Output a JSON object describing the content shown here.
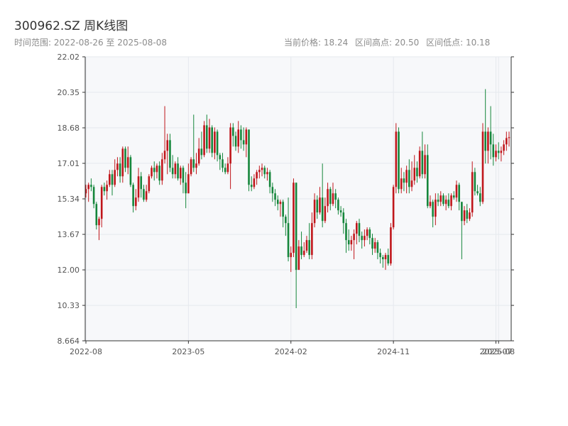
{
  "header": {
    "title": "300962.SZ 周K线图",
    "range_label": "时间范围: 2022-08-26 至 2025-08-08",
    "current_price_label": "当前价格: 18.24",
    "range_high_label": "区间高点: 20.50",
    "range_low_label": "区间低点: 10.18"
  },
  "colors": {
    "up": "#c0161b",
    "down": "#15863b",
    "grid": "#e6e9ee",
    "plot_bg": "#f7f8fa",
    "axis": "#333333"
  },
  "chart_data": {
    "type": "candlestick",
    "title": "300962.SZ 周K线图",
    "xlabel": "",
    "ylabel": "",
    "ylim": [
      8.664,
      22.02
    ],
    "y_ticks": [
      "22.02",
      "20.35",
      "18.68",
      "17.01",
      "15.34",
      "13.67",
      "12.00",
      "10.33",
      "8.664"
    ],
    "y_tick_values": [
      22.02,
      20.35,
      18.68,
      17.01,
      15.34,
      13.67,
      12.0,
      10.33,
      8.664
    ],
    "x_ticks": [
      "2022-08",
      "2023-05",
      "2024-02",
      "2024-11",
      "2025-07",
      "2025-08"
    ],
    "x_tick_indices": [
      0,
      39,
      78,
      117,
      156,
      157
    ],
    "start_date": "2022-08-26",
    "end_date": "2025-08-08",
    "grid": true,
    "candles": [
      [
        15.6,
        15.8,
        15.4,
        16.0
      ],
      [
        15.8,
        16.0,
        15.2,
        16.1
      ],
      [
        16.0,
        15.9,
        15.7,
        16.3
      ],
      [
        15.9,
        15.1,
        14.9,
        16.0
      ],
      [
        15.1,
        14.1,
        13.9,
        15.2
      ],
      [
        14.1,
        14.4,
        13.4,
        14.5
      ],
      [
        14.4,
        15.9,
        14.0,
        16.0
      ],
      [
        15.9,
        15.7,
        15.5,
        16.1
      ],
      [
        15.7,
        16.0,
        15.3,
        16.2
      ],
      [
        16.0,
        16.5,
        15.9,
        16.7
      ],
      [
        16.5,
        16.0,
        15.5,
        16.7
      ],
      [
        16.0,
        16.7,
        15.9,
        17.2
      ],
      [
        16.7,
        17.0,
        16.4,
        17.3
      ],
      [
        17.0,
        16.4,
        16.1,
        17.3
      ],
      [
        16.4,
        17.7,
        16.1,
        17.8
      ],
      [
        17.7,
        16.8,
        16.6,
        17.8
      ],
      [
        16.8,
        17.3,
        16.5,
        17.8
      ],
      [
        17.3,
        16.0,
        15.9,
        17.4
      ],
      [
        16.0,
        15.0,
        14.7,
        16.1
      ],
      [
        15.0,
        15.4,
        14.8,
        15.8
      ],
      [
        15.4,
        16.4,
        15.2,
        16.8
      ],
      [
        16.4,
        15.8,
        15.4,
        16.6
      ],
      [
        15.8,
        15.3,
        15.2,
        16.0
      ],
      [
        15.3,
        15.7,
        15.2,
        16.0
      ],
      [
        15.7,
        16.4,
        15.6,
        16.5
      ],
      [
        16.4,
        16.8,
        16.3,
        16.9
      ],
      [
        16.8,
        16.6,
        16.2,
        17.1
      ],
      [
        16.6,
        16.9,
        16.3,
        17.0
      ],
      [
        16.9,
        16.2,
        16.0,
        17.1
      ],
      [
        16.2,
        17.2,
        16.0,
        17.5
      ],
      [
        17.2,
        17.6,
        17.0,
        19.7
      ],
      [
        17.6,
        18.1,
        16.5,
        18.4
      ],
      [
        18.1,
        16.8,
        16.6,
        18.4
      ],
      [
        16.8,
        16.5,
        16.3,
        17.4
      ],
      [
        16.5,
        17.0,
        16.3,
        17.1
      ],
      [
        17.0,
        16.3,
        16.2,
        17.3
      ],
      [
        16.3,
        16.8,
        16.0,
        16.9
      ],
      [
        16.8,
        16.1,
        15.6,
        16.9
      ],
      [
        16.1,
        15.6,
        14.9,
        16.6
      ],
      [
        15.6,
        16.5,
        15.6,
        17.0
      ],
      [
        16.5,
        17.2,
        16.4,
        17.3
      ],
      [
        17.2,
        16.8,
        16.6,
        19.3
      ],
      [
        16.8,
        17.0,
        16.5,
        17.5
      ],
      [
        17.0,
        17.7,
        16.9,
        18.2
      ],
      [
        17.7,
        17.4,
        17.2,
        18.5
      ],
      [
        17.4,
        18.8,
        17.3,
        19.0
      ],
      [
        18.8,
        17.7,
        17.5,
        19.3
      ],
      [
        17.7,
        18.7,
        17.5,
        19.1
      ],
      [
        18.7,
        17.5,
        17.3,
        18.8
      ],
      [
        17.5,
        18.5,
        17.2,
        18.7
      ],
      [
        18.5,
        17.4,
        17.1,
        18.6
      ],
      [
        17.4,
        17.2,
        16.7,
        17.5
      ],
      [
        17.2,
        16.8,
        16.6,
        17.5
      ],
      [
        16.8,
        16.6,
        16.5,
        17.0
      ],
      [
        16.6,
        17.0,
        16.5,
        17.3
      ],
      [
        17.0,
        18.7,
        15.8,
        18.9
      ],
      [
        18.7,
        18.3,
        17.8,
        18.9
      ],
      [
        18.3,
        17.8,
        17.6,
        18.5
      ],
      [
        17.8,
        18.6,
        17.5,
        19.0
      ],
      [
        18.6,
        18.1,
        17.7,
        18.8
      ],
      [
        18.1,
        17.9,
        17.6,
        18.7
      ],
      [
        17.9,
        18.6,
        17.3,
        18.7
      ],
      [
        18.6,
        16.0,
        15.7,
        18.6
      ],
      [
        16.0,
        15.9,
        15.7,
        16.4
      ],
      [
        15.9,
        16.3,
        15.8,
        16.5
      ],
      [
        16.3,
        16.6,
        16.0,
        16.7
      ],
      [
        16.6,
        16.7,
        16.3,
        16.9
      ],
      [
        16.7,
        16.8,
        16.4,
        17.0
      ],
      [
        16.8,
        16.5,
        16.3,
        16.9
      ],
      [
        16.5,
        16.6,
        16.2,
        16.8
      ],
      [
        16.6,
        15.9,
        15.6,
        16.7
      ],
      [
        15.9,
        15.6,
        15.2,
        16.1
      ],
      [
        15.6,
        15.3,
        15.0,
        15.8
      ],
      [
        15.3,
        15.1,
        14.8,
        15.5
      ],
      [
        15.1,
        15.2,
        14.5,
        15.3
      ],
      [
        15.2,
        14.5,
        14.0,
        15.3
      ],
      [
        14.5,
        14.2,
        13.6,
        14.6
      ],
      [
        14.2,
        12.6,
        12.4,
        15.4
      ],
      [
        12.6,
        12.8,
        11.9,
        13.1
      ],
      [
        12.8,
        16.1,
        12.6,
        16.3
      ],
      [
        16.1,
        12.0,
        10.2,
        16.1
      ],
      [
        12.0,
        13.1,
        12.0,
        13.4
      ],
      [
        13.1,
        12.7,
        12.5,
        13.8
      ],
      [
        12.7,
        12.9,
        12.6,
        13.3
      ],
      [
        12.9,
        13.4,
        12.8,
        13.6
      ],
      [
        13.4,
        12.7,
        12.5,
        14.2
      ],
      [
        12.7,
        14.2,
        12.5,
        14.7
      ],
      [
        14.2,
        15.3,
        14.0,
        15.6
      ],
      [
        15.3,
        14.7,
        14.4,
        15.5
      ],
      [
        14.7,
        15.4,
        14.6,
        15.9
      ],
      [
        15.4,
        14.3,
        14.0,
        17.0
      ],
      [
        14.3,
        15.0,
        14.2,
        15.4
      ],
      [
        15.0,
        15.8,
        14.7,
        16.1
      ],
      [
        15.8,
        15.1,
        14.8,
        15.9
      ],
      [
        15.1,
        15.6,
        15.0,
        16.1
      ],
      [
        15.6,
        15.3,
        14.9,
        15.8
      ],
      [
        15.3,
        14.8,
        14.6,
        15.4
      ],
      [
        14.8,
        14.7,
        14.5,
        15.0
      ],
      [
        14.7,
        14.2,
        13.7,
        14.9
      ],
      [
        14.2,
        13.4,
        12.8,
        14.4
      ],
      [
        13.4,
        13.2,
        12.9,
        13.9
      ],
      [
        13.2,
        13.4,
        12.9,
        13.6
      ],
      [
        13.4,
        13.7,
        12.5,
        13.9
      ],
      [
        13.7,
        14.2,
        13.2,
        14.3
      ],
      [
        14.2,
        13.6,
        13.3,
        14.4
      ],
      [
        13.6,
        13.4,
        13.0,
        13.8
      ],
      [
        13.4,
        13.6,
        13.1,
        13.9
      ],
      [
        13.6,
        13.9,
        13.4,
        14.0
      ],
      [
        13.9,
        13.5,
        13.2,
        14.0
      ],
      [
        13.5,
        13.0,
        12.7,
        13.7
      ],
      [
        13.0,
        13.3,
        12.8,
        13.5
      ],
      [
        13.3,
        12.8,
        12.5,
        13.4
      ],
      [
        12.8,
        12.6,
        12.3,
        13.0
      ],
      [
        12.6,
        12.5,
        12.1,
        12.7
      ],
      [
        12.5,
        12.7,
        12.0,
        12.8
      ],
      [
        12.7,
        12.3,
        12.2,
        13.0
      ],
      [
        12.3,
        14.0,
        12.2,
        14.2
      ],
      [
        14.0,
        15.9,
        13.9,
        16.0
      ],
      [
        15.9,
        18.5,
        15.6,
        18.9
      ],
      [
        18.5,
        15.8,
        15.6,
        18.7
      ],
      [
        15.8,
        16.3,
        15.6,
        16.8
      ],
      [
        16.3,
        16.1,
        15.7,
        16.6
      ],
      [
        16.1,
        16.7,
        15.6,
        16.9
      ],
      [
        16.7,
        15.9,
        15.6,
        17.2
      ],
      [
        15.9,
        16.2,
        15.7,
        17.1
      ],
      [
        16.2,
        16.8,
        16.0,
        17.4
      ],
      [
        16.8,
        16.4,
        16.1,
        17.1
      ],
      [
        16.4,
        17.6,
        16.3,
        17.8
      ],
      [
        17.6,
        16.5,
        16.3,
        18.5
      ],
      [
        16.5,
        17.4,
        16.3,
        17.9
      ],
      [
        17.4,
        15.0,
        14.9,
        17.9
      ],
      [
        15.0,
        15.2,
        14.9,
        15.5
      ],
      [
        15.2,
        14.5,
        14.0,
        15.3
      ],
      [
        14.5,
        15.3,
        14.1,
        15.6
      ],
      [
        15.3,
        15.2,
        15.0,
        15.6
      ],
      [
        15.2,
        15.5,
        15.0,
        15.7
      ],
      [
        15.5,
        15.1,
        15.0,
        15.6
      ],
      [
        15.1,
        15.3,
        14.8,
        15.5
      ],
      [
        15.3,
        15.0,
        14.9,
        15.6
      ],
      [
        15.0,
        15.5,
        14.8,
        15.6
      ],
      [
        15.5,
        15.4,
        15.3,
        15.7
      ],
      [
        15.4,
        16.0,
        15.2,
        16.2
      ],
      [
        16.0,
        15.2,
        14.8,
        16.1
      ],
      [
        15.2,
        14.3,
        12.5,
        15.1
      ],
      [
        14.3,
        14.8,
        14.1,
        15.0
      ],
      [
        14.8,
        14.4,
        14.2,
        15.1
      ],
      [
        14.4,
        14.7,
        14.3,
        14.9
      ],
      [
        14.7,
        16.6,
        14.5,
        17.1
      ],
      [
        16.6,
        15.7,
        15.5,
        16.8
      ],
      [
        15.7,
        15.6,
        15.5,
        16.0
      ],
      [
        15.6,
        15.2,
        15.0,
        15.9
      ],
      [
        15.2,
        18.5,
        15.1,
        18.9
      ],
      [
        18.5,
        17.6,
        17.0,
        20.5
      ],
      [
        17.6,
        18.5,
        17.0,
        18.7
      ],
      [
        18.5,
        17.9,
        17.2,
        19.7
      ],
      [
        17.9,
        17.3,
        16.9,
        18.4
      ],
      [
        17.3,
        17.6,
        17.1,
        17.9
      ],
      [
        17.6,
        17.5,
        17.2,
        18.0
      ],
      [
        17.5,
        17.6,
        17.1,
        17.8
      ],
      [
        17.6,
        17.9,
        17.4,
        18.1
      ],
      [
        17.9,
        18.2,
        17.6,
        18.5
      ],
      [
        18.2,
        18.24,
        17.8,
        18.5
      ]
    ]
  }
}
